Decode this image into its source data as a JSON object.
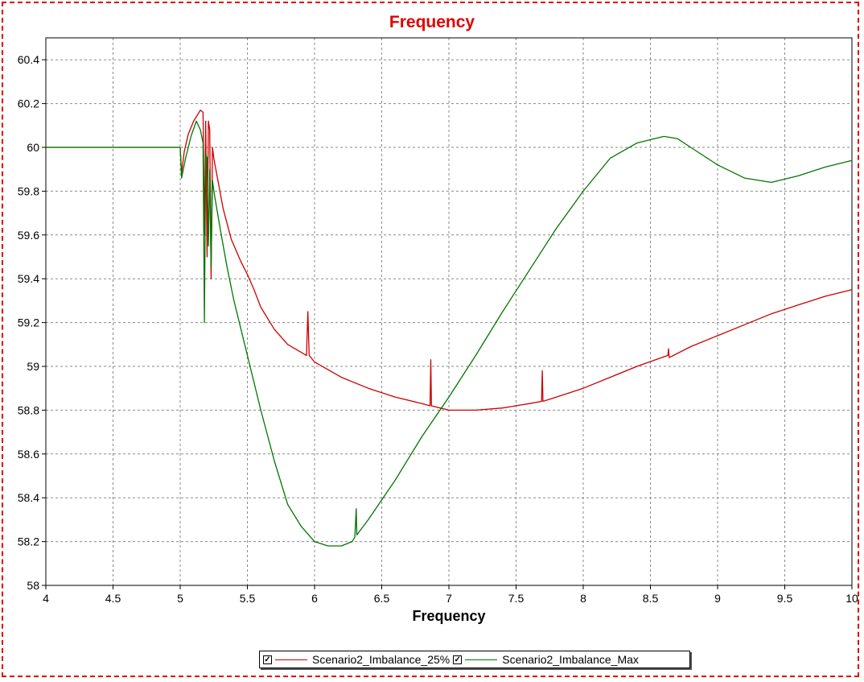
{
  "chart_data": {
    "type": "line",
    "title": "Frequency",
    "xlabel": "Frequency",
    "ylabel": "",
    "xlim": [
      4,
      10
    ],
    "ylim": [
      58,
      60.5
    ],
    "x_ticks": [
      "4",
      "4.5",
      "5",
      "5.5",
      "6",
      "6.5",
      "7",
      "7.5",
      "8",
      "8.5",
      "9",
      "9.5",
      "10"
    ],
    "y_ticks": [
      "58",
      "58.2",
      "58.4",
      "58.6",
      "58.8",
      "59",
      "59.2",
      "59.4",
      "59.6",
      "59.8",
      "60",
      "60.2",
      "60.4"
    ],
    "grid": true,
    "legend_position": "bottom",
    "series": [
      {
        "name": "Scenario2_Imbalance_25%",
        "color": "#cc0000",
        "points": [
          [
            4.0,
            60.0
          ],
          [
            5.0,
            60.0
          ],
          [
            5.01,
            59.88
          ],
          [
            5.03,
            59.98
          ],
          [
            5.06,
            60.06
          ],
          [
            5.1,
            60.12
          ],
          [
            5.15,
            60.17
          ],
          [
            5.17,
            60.16
          ],
          [
            5.18,
            59.6
          ],
          [
            5.19,
            60.12
          ],
          [
            5.2,
            59.5
          ],
          [
            5.21,
            60.12
          ],
          [
            5.22,
            60.08
          ],
          [
            5.23,
            59.4
          ],
          [
            5.24,
            60.0
          ],
          [
            5.25,
            59.95
          ],
          [
            5.28,
            59.85
          ],
          [
            5.32,
            59.72
          ],
          [
            5.38,
            59.58
          ],
          [
            5.45,
            59.48
          ],
          [
            5.5,
            59.42
          ],
          [
            5.55,
            59.35
          ],
          [
            5.6,
            59.27
          ],
          [
            5.7,
            59.17
          ],
          [
            5.8,
            59.1
          ],
          [
            5.94,
            59.05
          ],
          [
            5.95,
            59.25
          ],
          [
            5.96,
            59.05
          ],
          [
            6.0,
            59.02
          ],
          [
            6.2,
            58.95
          ],
          [
            6.4,
            58.9
          ],
          [
            6.6,
            58.86
          ],
          [
            6.8,
            58.83
          ],
          [
            6.86,
            58.82
          ],
          [
            6.865,
            59.03
          ],
          [
            6.87,
            58.82
          ],
          [
            7.0,
            58.8
          ],
          [
            7.2,
            58.8
          ],
          [
            7.4,
            58.81
          ],
          [
            7.6,
            58.83
          ],
          [
            7.69,
            58.84
          ],
          [
            7.695,
            58.98
          ],
          [
            7.7,
            58.84
          ],
          [
            7.8,
            58.86
          ],
          [
            8.0,
            58.9
          ],
          [
            8.2,
            58.95
          ],
          [
            8.4,
            59.0
          ],
          [
            8.63,
            59.05
          ],
          [
            8.635,
            59.08
          ],
          [
            8.64,
            59.04
          ],
          [
            8.8,
            59.09
          ],
          [
            9.0,
            59.14
          ],
          [
            9.2,
            59.19
          ],
          [
            9.4,
            59.24
          ],
          [
            9.6,
            59.28
          ],
          [
            9.8,
            59.32
          ],
          [
            10.0,
            59.35
          ]
        ]
      },
      {
        "name": "Scenario2_Imbalance_Max",
        "color": "#007700",
        "points": [
          [
            4.0,
            60.0
          ],
          [
            5.0,
            60.0
          ],
          [
            5.01,
            59.86
          ],
          [
            5.04,
            59.95
          ],
          [
            5.08,
            60.05
          ],
          [
            5.12,
            60.12
          ],
          [
            5.15,
            60.08
          ],
          [
            5.17,
            60.02
          ],
          [
            5.18,
            59.2
          ],
          [
            5.19,
            59.97
          ],
          [
            5.2,
            59.95
          ],
          [
            5.21,
            59.55
          ],
          [
            5.22,
            59.9
          ],
          [
            5.23,
            59.45
          ],
          [
            5.24,
            59.85
          ],
          [
            5.25,
            59.8
          ],
          [
            5.3,
            59.62
          ],
          [
            5.35,
            59.45
          ],
          [
            5.4,
            59.3
          ],
          [
            5.5,
            59.05
          ],
          [
            5.6,
            58.8
          ],
          [
            5.7,
            58.57
          ],
          [
            5.8,
            58.37
          ],
          [
            5.9,
            58.27
          ],
          [
            6.0,
            58.2
          ],
          [
            6.1,
            58.18
          ],
          [
            6.2,
            58.18
          ],
          [
            6.28,
            58.2
          ],
          [
            6.3,
            58.22
          ],
          [
            6.31,
            58.35
          ],
          [
            6.315,
            58.23
          ],
          [
            6.4,
            58.3
          ],
          [
            6.5,
            58.39
          ],
          [
            6.6,
            58.48
          ],
          [
            6.7,
            58.58
          ],
          [
            6.8,
            58.68
          ],
          [
            6.9,
            58.77
          ],
          [
            7.0,
            58.86
          ],
          [
            7.2,
            59.05
          ],
          [
            7.4,
            59.25
          ],
          [
            7.6,
            59.44
          ],
          [
            7.8,
            59.63
          ],
          [
            8.0,
            59.8
          ],
          [
            8.2,
            59.95
          ],
          [
            8.4,
            60.02
          ],
          [
            8.6,
            60.05
          ],
          [
            8.7,
            60.04
          ],
          [
            8.8,
            60.0
          ],
          [
            9.0,
            59.92
          ],
          [
            9.2,
            59.86
          ],
          [
            9.4,
            59.84
          ],
          [
            9.6,
            59.87
          ],
          [
            9.8,
            59.91
          ],
          [
            10.0,
            59.94
          ]
        ]
      }
    ]
  }
}
